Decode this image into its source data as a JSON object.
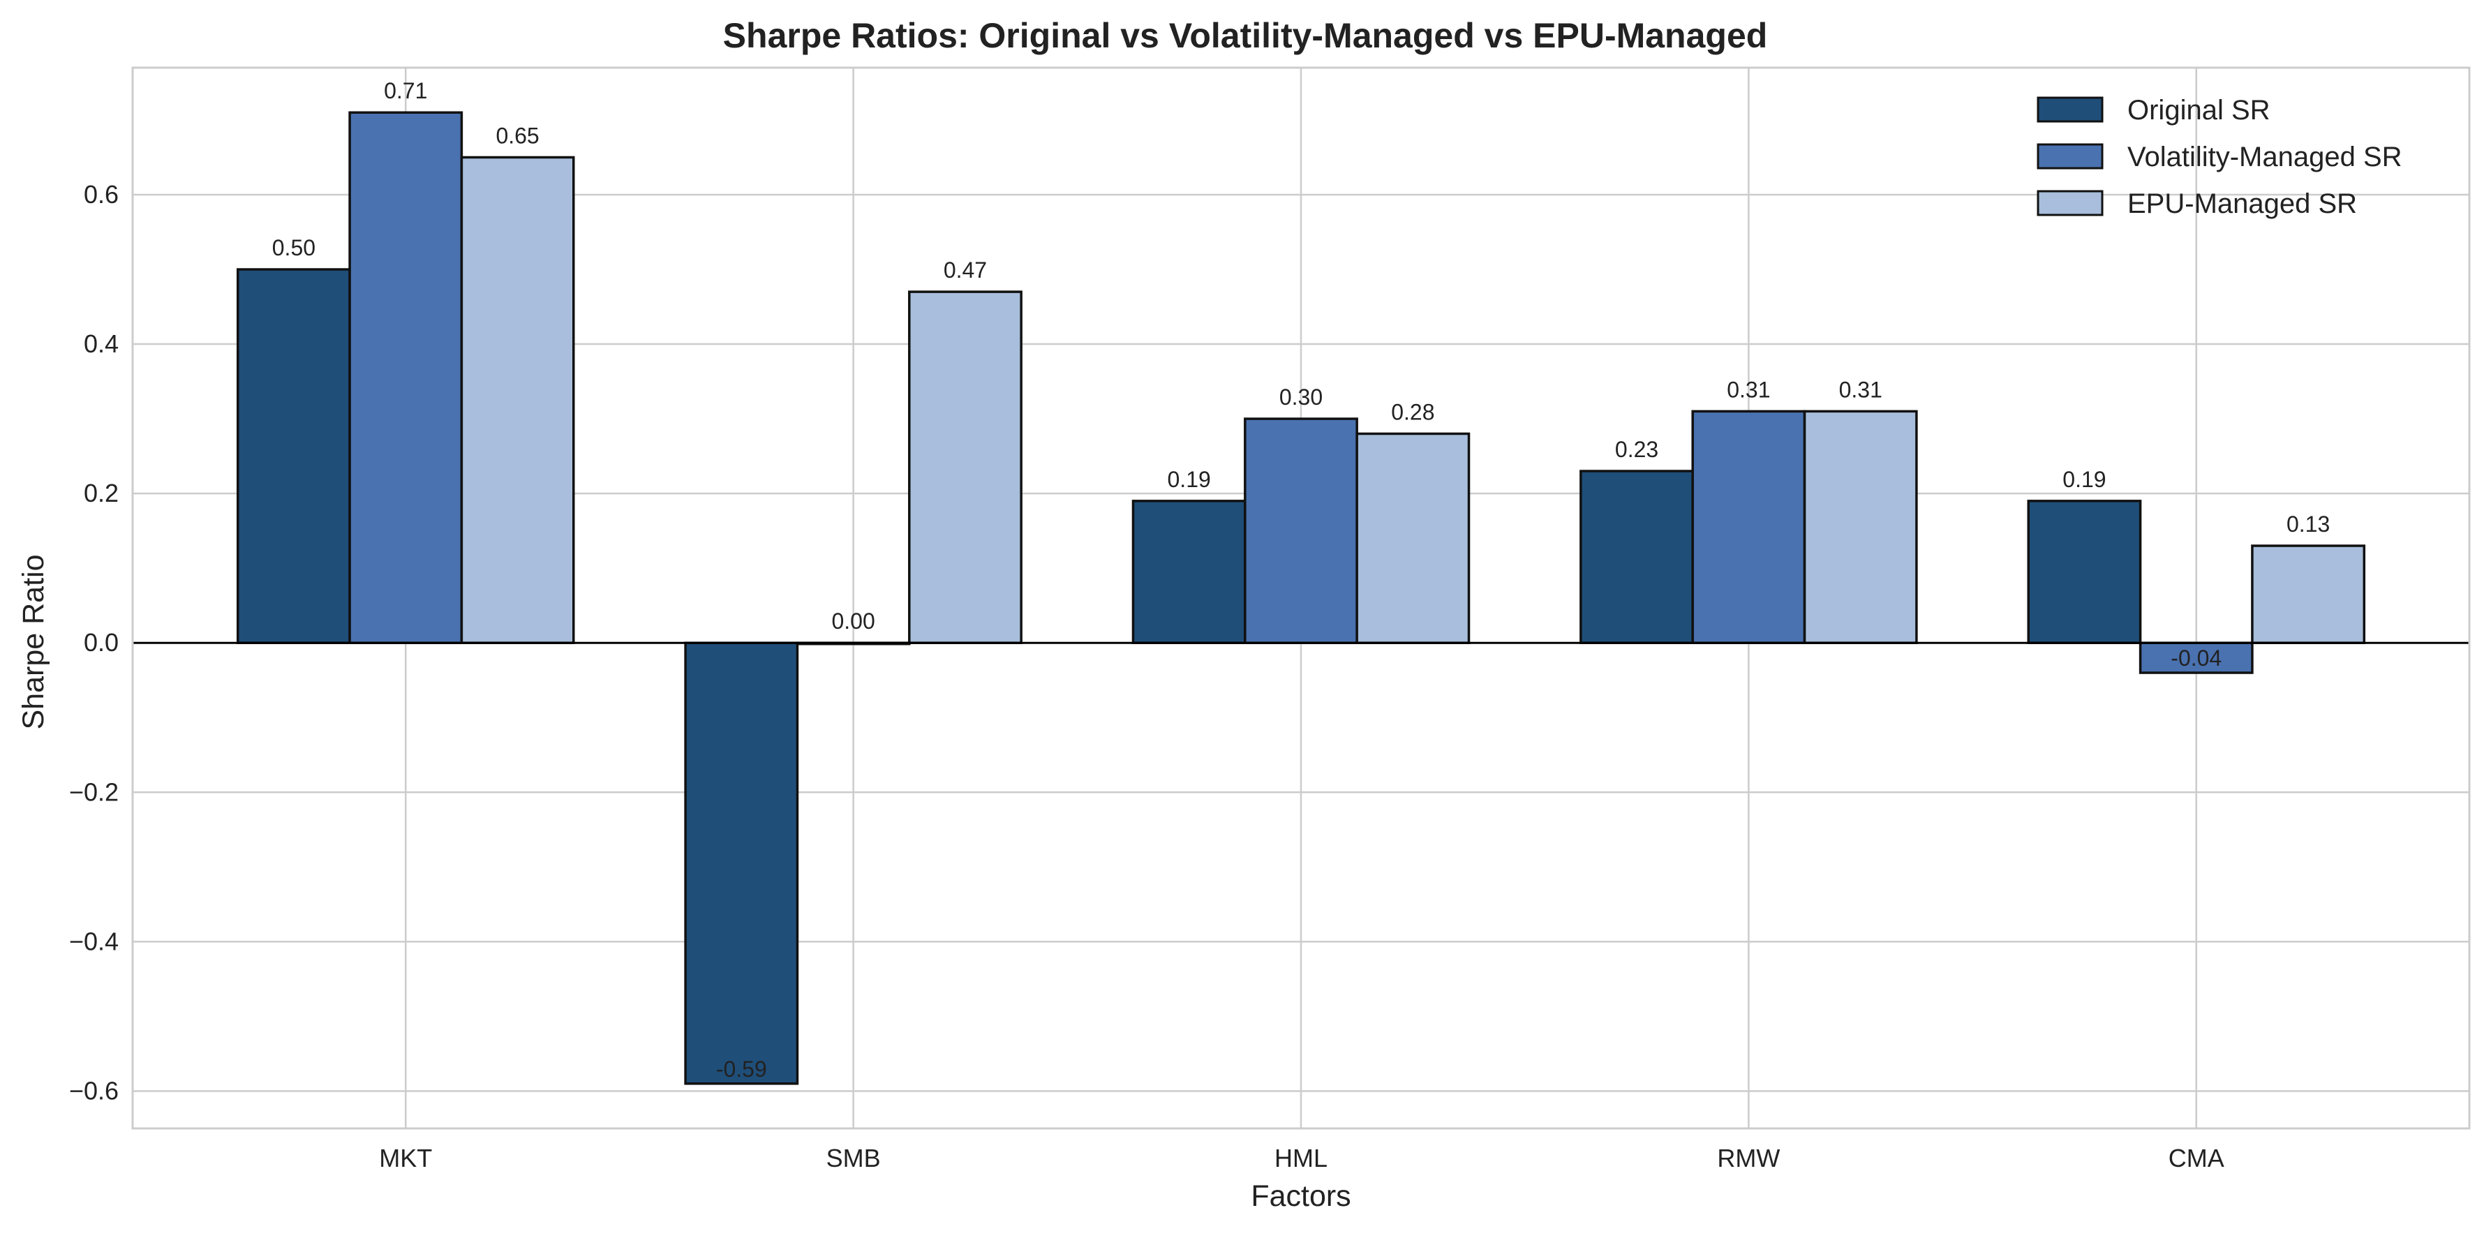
{
  "chart_data": {
    "type": "bar",
    "title": "Sharpe Ratios: Original vs Volatility-Managed vs EPU-Managed",
    "xlabel": "Factors",
    "ylabel": "Sharpe Ratio",
    "categories": [
      "MKT",
      "SMB",
      "HML",
      "RMW",
      "CMA"
    ],
    "series": [
      {
        "name": "Original SR",
        "color": "#1f4e79",
        "values": [
          0.5,
          -0.59,
          0.19,
          0.23,
          0.19
        ],
        "labels": [
          "0.50",
          "-0.59",
          "0.19",
          "0.23",
          "0.19"
        ]
      },
      {
        "name": "Volatility-Managed SR",
        "color": "#4a72b0",
        "values": [
          0.71,
          0.0,
          0.3,
          0.31,
          -0.04
        ],
        "labels": [
          "0.71",
          "0.00",
          "0.30",
          "0.31",
          "-0.04"
        ]
      },
      {
        "name": "EPU-Managed SR",
        "color": "#a8bedc",
        "values": [
          0.65,
          0.47,
          0.28,
          0.31,
          0.13
        ],
        "labels": [
          "0.65",
          "0.47",
          "0.28",
          "0.31",
          "0.13"
        ]
      }
    ],
    "ylim": [
      -0.65,
      0.77
    ],
    "yticks": [
      -0.6,
      -0.4,
      -0.2,
      0.0,
      0.2,
      0.4,
      0.6
    ],
    "ytick_labels": [
      "−0.6",
      "−0.4",
      "−0.2",
      "0.0",
      "0.2",
      "0.4",
      "0.6"
    ],
    "grid": true,
    "legend_position": "top-right",
    "zero_line": true
  }
}
